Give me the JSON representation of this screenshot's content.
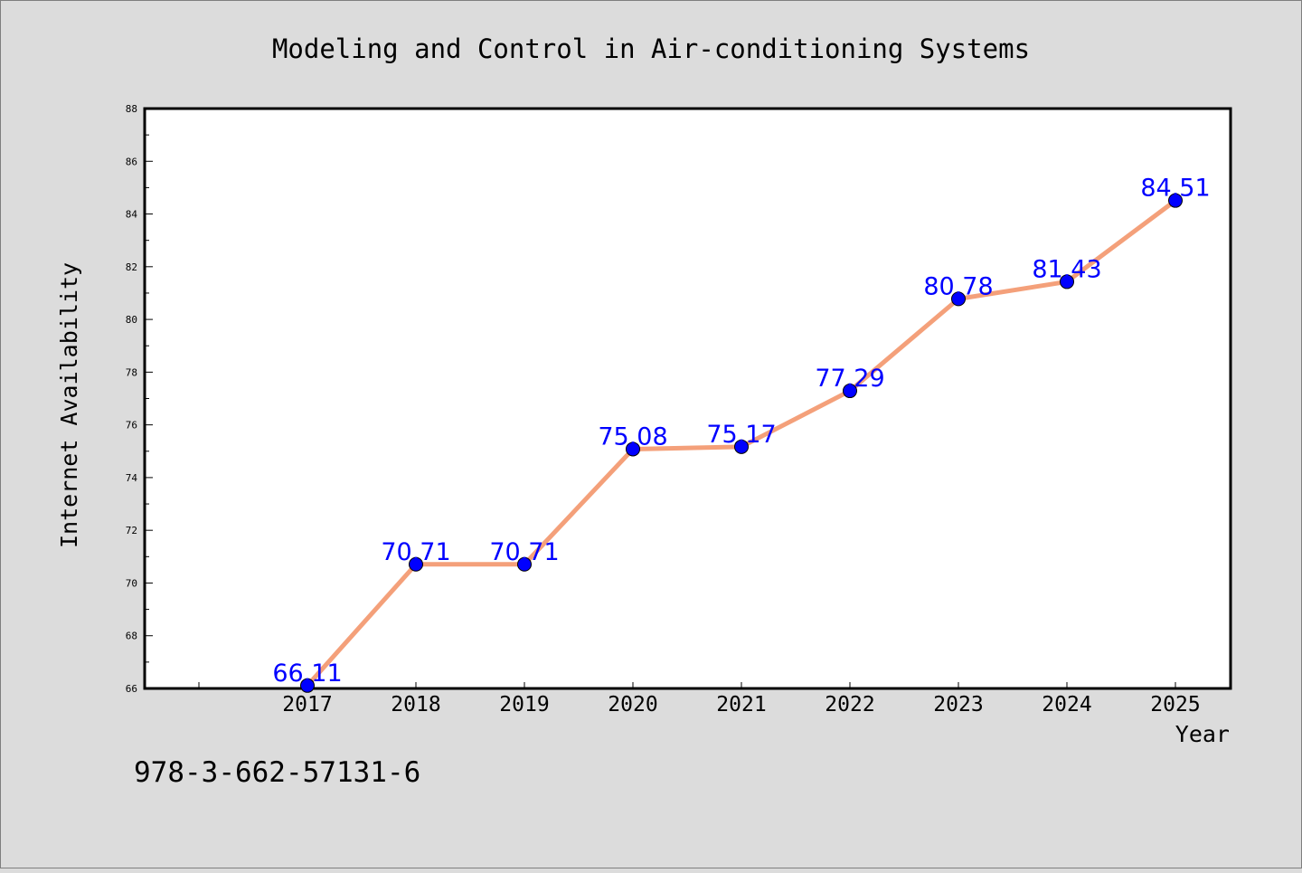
{
  "chart_data": {
    "type": "line",
    "title": "Modeling and Control in Air-conditioning Systems",
    "xlabel": "Year",
    "ylabel": "Internet Availability",
    "footnote": "978-3-662-57131-6",
    "categories": [
      "2017",
      "2018",
      "2019",
      "2020",
      "2021",
      "2022",
      "2023",
      "2024",
      "2025"
    ],
    "series": [
      {
        "values": [
          66.11,
          70.71,
          70.71,
          75.08,
          75.17,
          77.29,
          80.78,
          81.43,
          84.51
        ],
        "labels": [
          "66.11",
          "70.71",
          "70.71",
          "75.08",
          "75.17",
          "77.29",
          "80.78",
          "81.43",
          "84.51"
        ]
      }
    ],
    "ylim": [
      66,
      88
    ],
    "yticks": [
      66,
      68,
      70,
      72,
      74,
      76,
      78,
      80,
      82,
      84,
      86,
      88
    ],
    "grid": false,
    "colors": {
      "line": "#f4a07a",
      "marker": "#0000ff",
      "label": "#0000ff",
      "background": "#dcdcdc",
      "plot_background": "#ffffff"
    }
  }
}
